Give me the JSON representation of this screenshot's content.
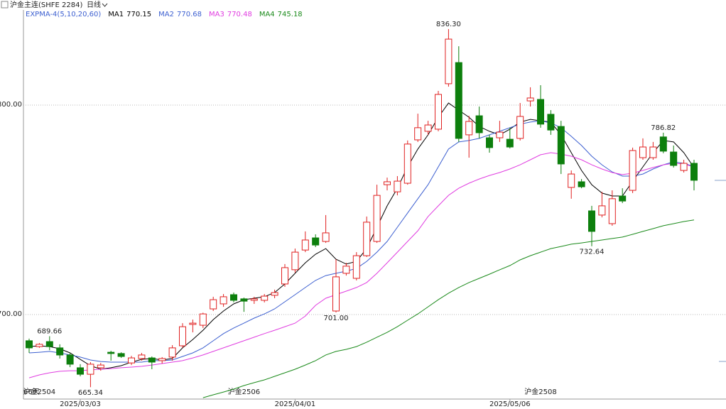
{
  "chart_data": {
    "type": "candlestick",
    "title": "沪金主连(SHFE 2284)",
    "period": "日线",
    "indicator": "EXPMA-4(5,10,20,60)",
    "span_label": "66天",
    "categories": [
      null,
      null,
      null,
      null,
      null,
      "2025/03/03",
      null,
      null,
      null,
      null,
      null,
      null,
      null,
      null,
      null,
      null,
      null,
      null,
      null,
      null,
      null,
      null,
      null,
      null,
      null,
      null,
      "2025/04/01",
      null,
      null,
      null,
      null,
      null,
      null,
      null,
      null,
      null,
      null,
      null,
      null,
      null,
      null,
      null,
      null,
      null,
      null,
      null,
      null,
      "2025/05/06",
      null,
      null,
      null,
      null,
      null,
      null,
      null,
      null,
      null,
      null,
      null,
      null,
      null,
      null,
      null,
      null,
      null,
      null
    ],
    "contracts": [
      null,
      "沪金2504",
      null,
      null,
      null,
      null,
      null,
      null,
      null,
      null,
      null,
      null,
      null,
      null,
      null,
      null,
      null,
      null,
      null,
      null,
      null,
      "沪金2506",
      null,
      null,
      null,
      null,
      null,
      null,
      null,
      null,
      null,
      null,
      null,
      null,
      null,
      null,
      null,
      null,
      null,
      null,
      null,
      null,
      null,
      null,
      null,
      null,
      null,
      null,
      null,
      null,
      "沪金2508",
      null,
      null,
      null,
      null,
      null,
      null,
      null,
      null,
      null,
      null,
      null,
      null,
      null,
      null,
      null
    ],
    "open": [
      687.5,
      684.7,
      687.1,
      684.1,
      680.7,
      674.6,
      671.5,
      674.6,
      682.0,
      681.4,
      676.9,
      679.0,
      679.3,
      678.0,
      679.7,
      685.1,
      695.3,
      694.9,
      702.7,
      705.1,
      709.5,
      707.5,
      706.8,
      706.8,
      709.2,
      714.6,
      721.4,
      730.8,
      736.6,
      734.9,
      701.7,
      719.7,
      717.3,
      728.1,
      734.9,
      762.0,
      758.6,
      762.7,
      783.4,
      787.5,
      788.5,
      810.2,
      820.3,
      785.8,
      794.9,
      784.4,
      784.4,
      783.7,
      784.1,
      802.0,
      802.7,
      795.6,
      789.8,
      760.7,
      763.4,
      749.5,
      747.5,
      743.4,
      756.6,
      759.3,
      774.9,
      774.9,
      784.8,
      777.6,
      768.8,
      772.2
    ],
    "high": [
      688.5,
      686.4,
      689.66,
      685.8,
      681.7,
      676.3,
      677.3,
      676.9,
      682.7,
      682.0,
      680.3,
      681.7,
      680.0,
      679.7,
      685.4,
      695.9,
      697.6,
      700.9,
      708.5,
      709.8,
      710.5,
      708.1,
      708.5,
      709.8,
      711.9,
      724.1,
      731.5,
      739.7,
      738.3,
      747.5,
      726.4,
      724.7,
      729.8,
      746.8,
      762.0,
      765.4,
      766.1,
      783.1,
      795.9,
      792.5,
      806.8,
      836.3,
      828.1,
      794.9,
      799.3,
      785.8,
      792.5,
      789.2,
      801.0,
      808.5,
      809.5,
      797.6,
      792.5,
      768.8,
      764.7,
      751.9,
      758.6,
      759.3,
      760.3,
      779.7,
      784.1,
      782.4,
      786.82,
      780.7,
      773.9,
      773.9
    ],
    "low": [
      681.7,
      684.1,
      683.0,
      679.0,
      674.9,
      670.5,
      665.34,
      673.2,
      678.0,
      679.3,
      675.9,
      678.0,
      673.9,
      676.6,
      678.0,
      684.1,
      691.5,
      693.6,
      701.7,
      703.7,
      705.8,
      701.3,
      705.1,
      705.8,
      707.8,
      713.2,
      720.0,
      729.8,
      732.2,
      734.2,
      701.0,
      718.6,
      716.3,
      727.5,
      734.2,
      759.3,
      756.9,
      762.0,
      782.4,
      785.8,
      787.5,
      808.8,
      782.4,
      774.9,
      784.1,
      777.3,
      782.4,
      779.3,
      783.1,
      799.3,
      789.2,
      785.8,
      767.1,
      755.3,
      760.3,
      732.64,
      746.4,
      742.4,
      753.2,
      758.0,
      773.9,
      773.9,
      777.0,
      770.2,
      767.8,
      759.3
    ],
    "close": [
      684.1,
      685.8,
      684.7,
      680.7,
      676.3,
      671.5,
      676.3,
      675.9,
      681.4,
      680.0,
      679.3,
      680.7,
      677.3,
      679.0,
      684.1,
      694.2,
      695.9,
      700.3,
      707.1,
      708.5,
      706.8,
      706.4,
      707.5,
      708.8,
      710.5,
      722.4,
      729.8,
      735.6,
      733.2,
      739.0,
      718.0,
      723.1,
      728.1,
      744.1,
      756.9,
      763.4,
      763.7,
      781.4,
      789.2,
      790.5,
      805.1,
      831.5,
      784.1,
      792.2,
      786.8,
      779.7,
      787.1,
      780.0,
      794.6,
      803.4,
      790.9,
      788.1,
      771.9,
      767.1,
      761.0,
      739.7,
      751.9,
      755.3,
      754.2,
      778.3,
      780.0,
      780.0,
      778.0,
      771.2,
      772.2,
      764.1
    ],
    "up_color": "#e02020",
    "down_color": "#0d7f0d",
    "series": [
      {
        "name": "MA1",
        "color": "#000000",
        "values": [
          684.7,
          685.1,
          684.7,
          683.7,
          681.7,
          678.6,
          675.6,
          673.9,
          674.6,
          675.6,
          677.3,
          678.6,
          679.0,
          678.3,
          679.0,
          684.1,
          688.1,
          692.5,
          697.6,
          701.7,
          705.1,
          707.1,
          707.8,
          708.5,
          710.5,
          714.6,
          719.7,
          724.7,
          728.8,
          731.5,
          726.4,
          724.1,
          725.4,
          731.5,
          741.7,
          751.9,
          760.3,
          770.5,
          779.0,
          785.8,
          794.2,
          801.0,
          797.6,
          794.2,
          789.8,
          787.5,
          785.8,
          788.5,
          791.9,
          793.2,
          792.5,
          791.9,
          785.8,
          777.3,
          768.8,
          762.0,
          758.0,
          756.6,
          756.6,
          763.7,
          770.5,
          777.3,
          783.1,
          782.4,
          777.3,
          770.15
        ]
      },
      {
        "name": "MA2",
        "color": "#3c5fd0",
        "values": [
          681.7,
          682.0,
          682.4,
          681.7,
          680.7,
          679.7,
          678.3,
          677.6,
          677.3,
          677.3,
          677.3,
          677.3,
          678.0,
          678.0,
          678.3,
          680.0,
          681.7,
          684.1,
          687.5,
          690.9,
          693.6,
          695.9,
          698.3,
          700.3,
          702.7,
          706.1,
          709.5,
          712.9,
          716.3,
          718.6,
          719.7,
          720.7,
          722.0,
          725.4,
          729.8,
          734.9,
          741.7,
          748.5,
          755.3,
          762.0,
          770.5,
          779.0,
          782.4,
          783.1,
          784.1,
          785.8,
          787.5,
          789.2,
          790.9,
          791.9,
          792.5,
          791.5,
          789.2,
          785.1,
          780.7,
          775.6,
          771.5,
          768.1,
          766.1,
          766.1,
          767.1,
          769.5,
          771.5,
          772.9,
          772.2,
          770.68
        ]
      },
      {
        "name": "MA3",
        "color": "#e03ce0",
        "values": [
          669.8,
          671.2,
          672.2,
          672.9,
          673.2,
          673.2,
          673.6,
          673.9,
          674.2,
          674.6,
          674.9,
          675.3,
          675.9,
          676.6,
          677.3,
          678.0,
          679.3,
          680.7,
          682.4,
          684.1,
          685.8,
          687.5,
          689.2,
          690.9,
          692.5,
          694.2,
          695.9,
          699.3,
          704.4,
          707.8,
          709.5,
          711.2,
          712.9,
          715.3,
          719.7,
          724.7,
          729.8,
          734.9,
          740.0,
          746.8,
          751.9,
          756.9,
          760.3,
          762.7,
          764.7,
          766.4,
          767.8,
          769.5,
          771.5,
          773.9,
          776.3,
          777.3,
          776.6,
          775.6,
          773.9,
          771.5,
          769.5,
          767.8,
          766.8,
          767.5,
          768.8,
          770.2,
          771.5,
          772.2,
          771.9,
          770.48
        ]
      },
      {
        "name": "MA4",
        "color": "#1a8a1a",
        "values": [
          null,
          null,
          null,
          null,
          null,
          null,
          null,
          null,
          null,
          null,
          null,
          null,
          null,
          null,
          null,
          null,
          null,
          660.3,
          661.7,
          663.0,
          664.4,
          666.1,
          667.5,
          668.8,
          670.5,
          672.2,
          673.9,
          675.9,
          678.0,
          680.7,
          682.4,
          683.4,
          684.7,
          686.8,
          689.2,
          691.5,
          694.2,
          697.3,
          700.3,
          703.7,
          707.1,
          710.2,
          712.9,
          715.3,
          717.3,
          719.3,
          721.4,
          723.4,
          726.1,
          728.1,
          729.8,
          731.5,
          732.5,
          733.6,
          734.2,
          734.9,
          735.6,
          736.3,
          737.0,
          738.3,
          739.7,
          741.0,
          742.4,
          743.4,
          744.4,
          745.18
        ]
      }
    ],
    "extreme_labels": [
      {
        "value": 836.3,
        "label": "836.30"
      },
      {
        "value": 689.66,
        "label": "689.66"
      },
      {
        "value": 665.34,
        "label": "665.34"
      },
      {
        "value": 701,
        "label": "701.00"
      },
      {
        "value": 732.64,
        "label": "732.64"
      },
      {
        "value": 786.82,
        "label": "786.82"
      }
    ],
    "ylim": [
      660,
      845
    ],
    "yticks": [
      {
        "value": 700,
        "label": "700.00"
      },
      {
        "value": 800,
        "label": "800.00"
      }
    ],
    "grid": true
  }
}
